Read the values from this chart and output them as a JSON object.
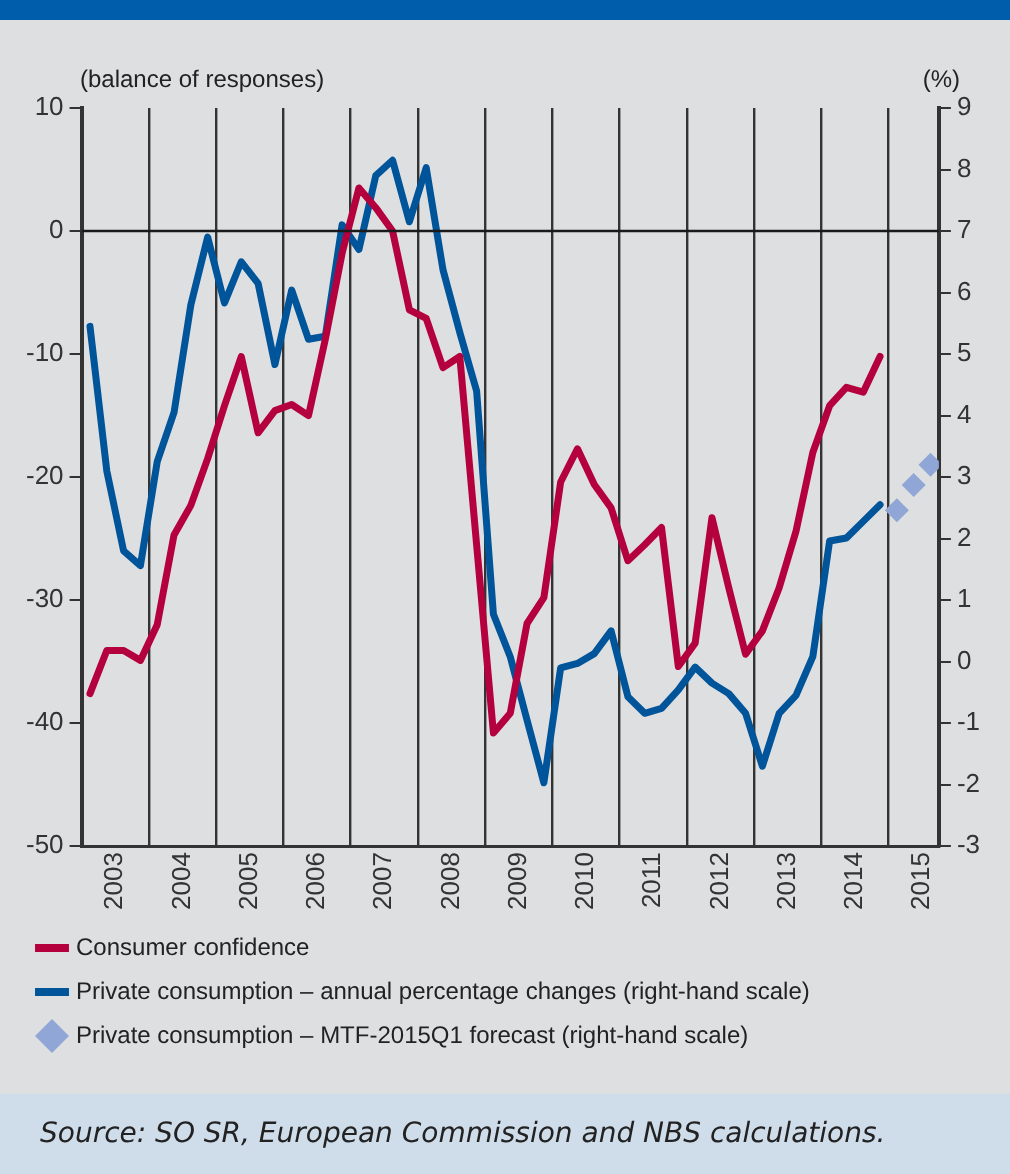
{
  "chart_data": {
    "type": "line",
    "ylabel": "(balance of responses)",
    "y2label": "(%)",
    "annotations": [
      "Source: SO SR, European Commission and NBS calculations."
    ],
    "x": [
      2003.125,
      2003.375,
      2003.625,
      2003.875,
      2004.125,
      2004.375,
      2004.625,
      2004.875,
      2005.125,
      2005.375,
      2005.625,
      2005.875,
      2006.125,
      2006.375,
      2006.625,
      2006.875,
      2007.125,
      2007.375,
      2007.625,
      2007.875,
      2008.125,
      2008.375,
      2008.625,
      2008.875,
      2009.125,
      2009.375,
      2009.625,
      2009.875,
      2010.125,
      2010.375,
      2010.625,
      2010.875,
      2011.125,
      2011.375,
      2011.625,
      2011.875,
      2012.125,
      2012.375,
      2012.625,
      2012.875,
      2013.125,
      2013.375,
      2013.625,
      2013.875,
      2014.125,
      2014.375,
      2014.625,
      2014.875
    ],
    "series": [
      {
        "name": "Consumer confidence",
        "color": "#b5003e",
        "values": [
          -37.6,
          -34.1,
          -34.1,
          -34.9,
          -32,
          -24.7,
          -22.3,
          -18.5,
          -14.2,
          -10.2,
          -16.4,
          -14.6,
          -14.1,
          -15,
          -8.8,
          -1.8,
          3.5,
          1.9,
          0,
          -6.4,
          -7.1,
          -11.1,
          -10.2,
          -25.5,
          -40.8,
          -39.2,
          -31.9,
          -29.8,
          -20.4,
          -17.7,
          -20.6,
          -22.5,
          -26.8,
          -25.5,
          -24.1,
          -35.4,
          -33.5,
          -23.3,
          -29,
          -34.4,
          -32.5,
          -29,
          -24.4,
          -18,
          -14.2,
          -12.7,
          -13.1,
          -10.2
        ]
      },
      {
        "name": "Private consumption – annual percentage changes (right-hand scale)",
        "color": "#00549a",
        "axis": "y2",
        "values": [
          5.45,
          3.1,
          1.8,
          1.56,
          3.25,
          4.05,
          5.8,
          6.9,
          5.83,
          6.5,
          6.15,
          4.83,
          6.04,
          5.24,
          5.29,
          7.1,
          6.7,
          7.9,
          8.15,
          7.15,
          8.03,
          6.37,
          5.35,
          4.4,
          0.77,
          0.08,
          -0.95,
          -1.97,
          -0.1,
          -0.03,
          0.13,
          0.5,
          -0.57,
          -0.84,
          -0.76,
          -0.46,
          -0.09,
          -0.35,
          -0.52,
          -0.84,
          -1.7,
          -0.84,
          -0.55,
          0.08,
          1.96,
          2.01,
          2.28,
          2.55
        ]
      },
      {
        "name": "Private consumption – MTF-2015Q1 forecast (right-hand scale)",
        "color": "#8fa6d6",
        "type": "scatter",
        "marker": "diamond",
        "axis": "y2",
        "x": [
          2015.125,
          2015.375,
          2015.625
        ],
        "values": [
          2.46,
          2.87,
          3.2
        ]
      }
    ],
    "xlim": [
      2003,
      2015.75
    ],
    "xticks": [
      {
        "value": 2003.5,
        "label": "2003"
      },
      {
        "value": 2004,
        "label": null
      },
      {
        "value": 2004.5,
        "label": "2004"
      },
      {
        "value": 2005,
        "label": null
      },
      {
        "value": 2005.5,
        "label": "2005"
      },
      {
        "value": 2006,
        "label": null
      },
      {
        "value": 2006.5,
        "label": "2006"
      },
      {
        "value": 2007,
        "label": null
      },
      {
        "value": 2007.5,
        "label": "2007"
      },
      {
        "value": 2008,
        "label": null
      },
      {
        "value": 2008.5,
        "label": "2008"
      },
      {
        "value": 2009,
        "label": null
      },
      {
        "value": 2009.5,
        "label": "2009"
      },
      {
        "value": 2010,
        "label": null
      },
      {
        "value": 2010.5,
        "label": "2010"
      },
      {
        "value": 2011,
        "label": null
      },
      {
        "value": 2011.5,
        "label": "2011"
      },
      {
        "value": 2012,
        "label": null
      },
      {
        "value": 2012.5,
        "label": "2012"
      },
      {
        "value": 2013,
        "label": null
      },
      {
        "value": 2013.5,
        "label": "2013"
      },
      {
        "value": 2014,
        "label": null
      },
      {
        "value": 2014.5,
        "label": "2014"
      },
      {
        "value": 2015,
        "label": null
      },
      {
        "value": 2015.5,
        "label": "2015"
      }
    ],
    "ylim": [
      -50,
      10
    ],
    "yticks": [
      -50,
      -40,
      -30,
      -20,
      -10,
      0,
      10
    ],
    "y2lim": [
      -3,
      9
    ],
    "y2ticks": [
      -3,
      -2,
      -1,
      0,
      1,
      2,
      3,
      4,
      5,
      6,
      7,
      8,
      9
    ],
    "ref_lines": [
      {
        "axis": "y",
        "value": 0,
        "color": "#1a1a1a"
      }
    ],
    "grid": "x",
    "legend": "bottom",
    "marker": "none",
    "line_style": "solid"
  }
}
